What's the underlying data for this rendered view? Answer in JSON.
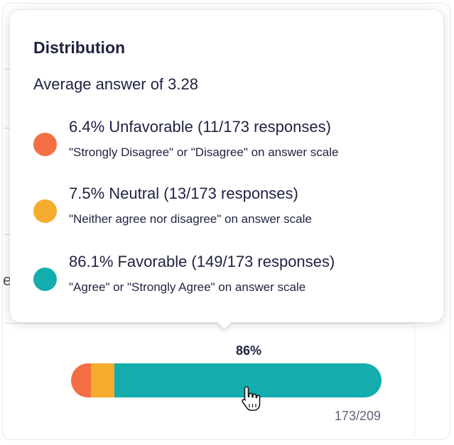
{
  "tooltip": {
    "title": "Distribution",
    "average": "Average answer of 3.28",
    "items": [
      {
        "main": "6.4% Unfavorable (11/173 responses)",
        "sub": "\"Strongly Disagree\" or \"Disagree\" on answer scale",
        "color": "#f36f43"
      },
      {
        "main": "7.5% Neutral (13/173 responses)",
        "sub": "\"Neither agree nor disagree\" on answer scale",
        "color": "#f5ac2e"
      },
      {
        "main": "86.1% Favorable (149/173 responses)",
        "sub": "\"Agree\" or \"Strongly Agree\" on answer scale",
        "color": "#12adac"
      }
    ]
  },
  "background": {
    "partial_letter": "e"
  },
  "bar": {
    "percent_label": "86%",
    "count_label": "173/209",
    "segments": [
      {
        "name": "unfavorable",
        "fraction": 0.064,
        "color": "#f36f43"
      },
      {
        "name": "neutral",
        "fraction": 0.075,
        "color": "#f5ac2e"
      },
      {
        "name": "favorable",
        "fraction": 0.861,
        "color": "#12adac"
      }
    ]
  },
  "cursor": {
    "icon": "hand-pointer-icon"
  }
}
